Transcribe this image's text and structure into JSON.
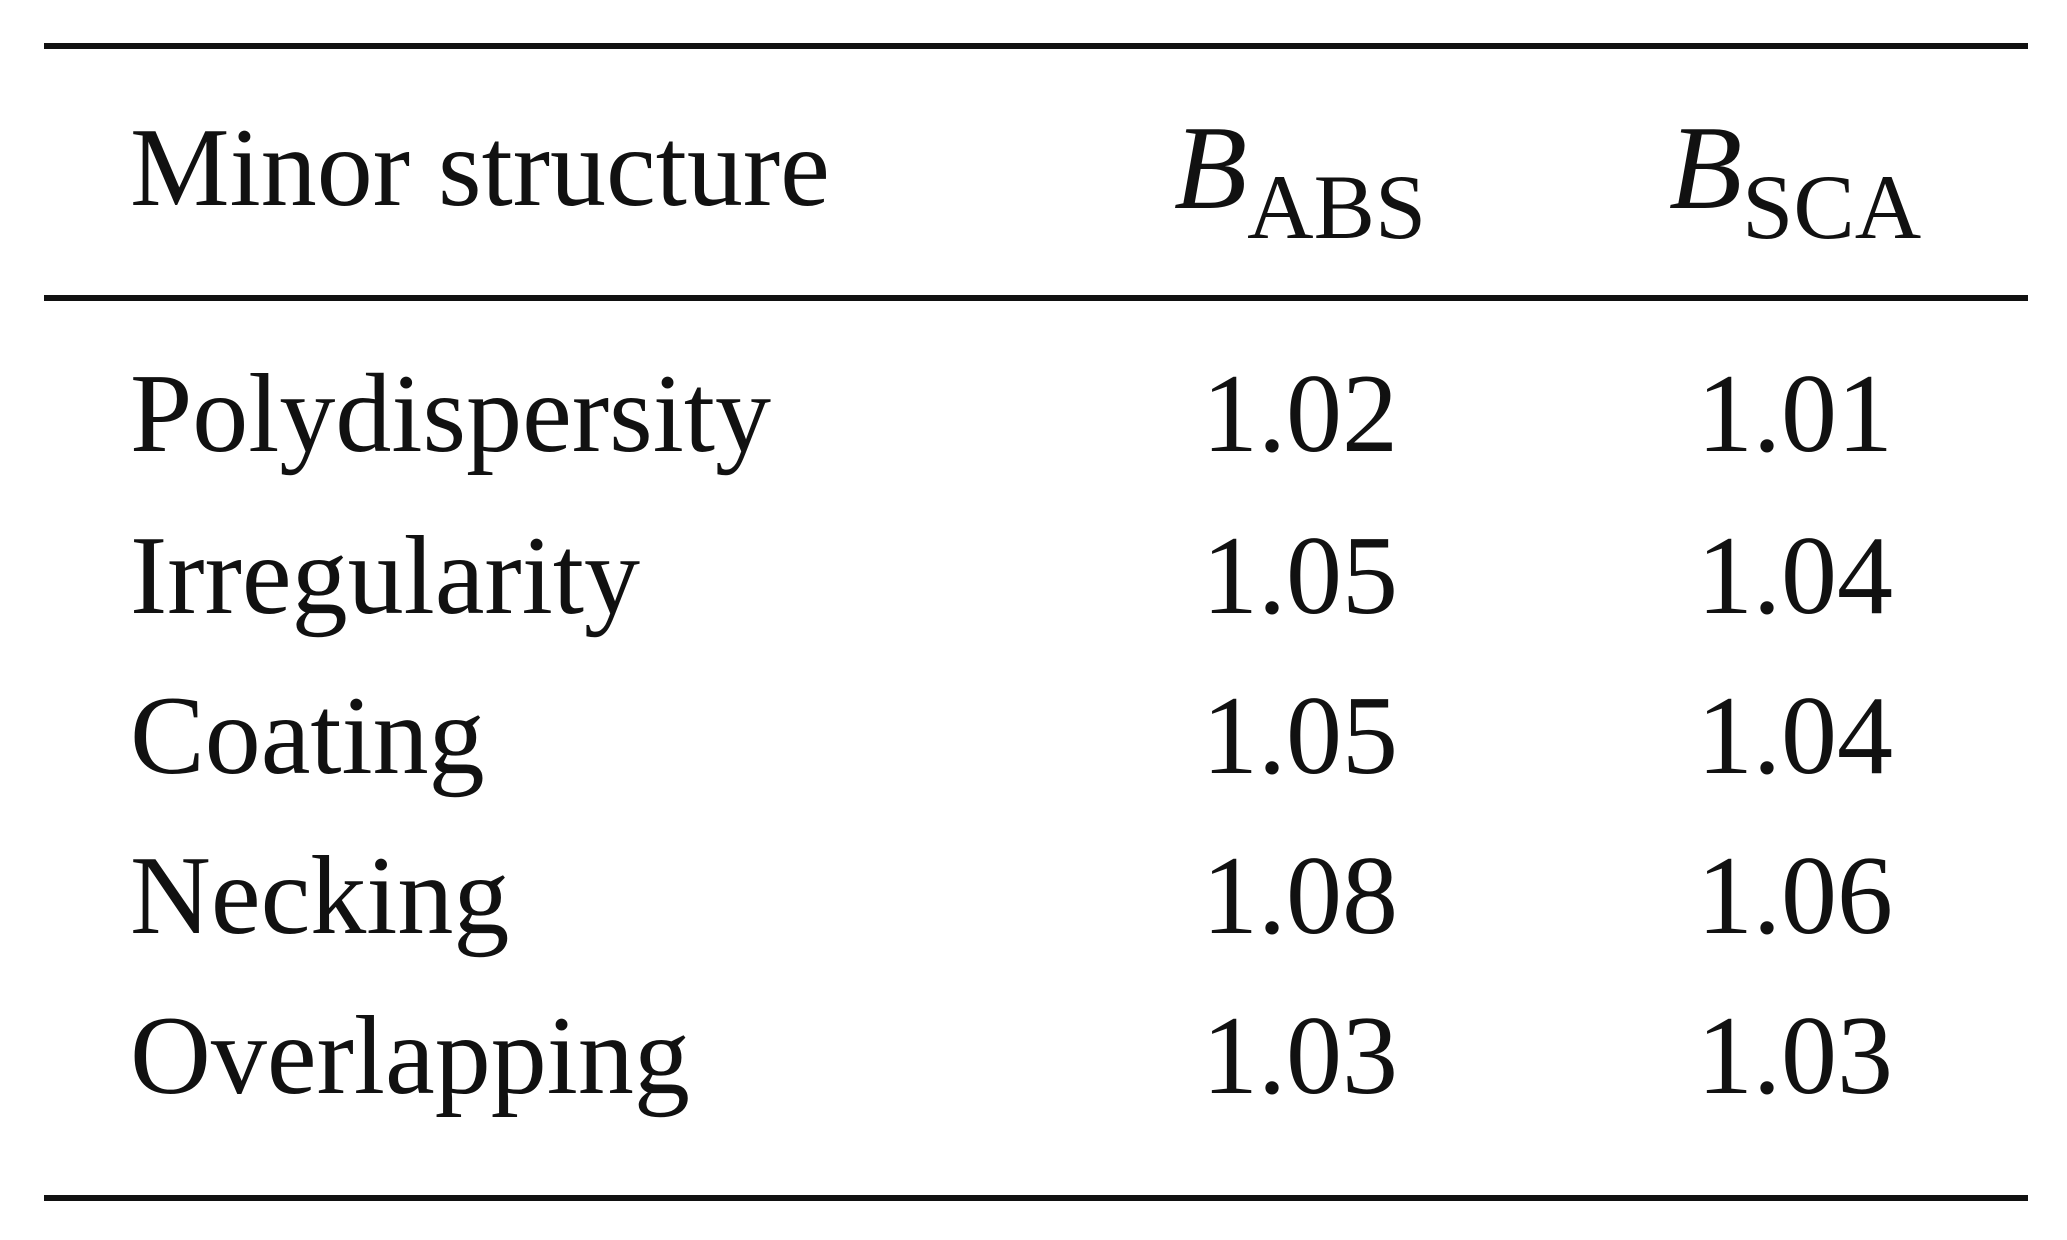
{
  "table": {
    "headers": {
      "label": "Minor structure",
      "abs": {
        "symbol": "B",
        "subscript": "ABS"
      },
      "sca": {
        "symbol": "B",
        "subscript": "SCA"
      }
    },
    "rows": [
      {
        "label": "Polydispersity",
        "abs": "1.02",
        "sca": "1.01"
      },
      {
        "label": "Irregularity",
        "abs": "1.05",
        "sca": "1.04"
      },
      {
        "label": "Coating",
        "abs": "1.05",
        "sca": "1.04"
      },
      {
        "label": "Necking",
        "abs": "1.08",
        "sca": "1.06"
      },
      {
        "label": "Overlapping",
        "abs": "1.03",
        "sca": "1.03"
      }
    ]
  }
}
